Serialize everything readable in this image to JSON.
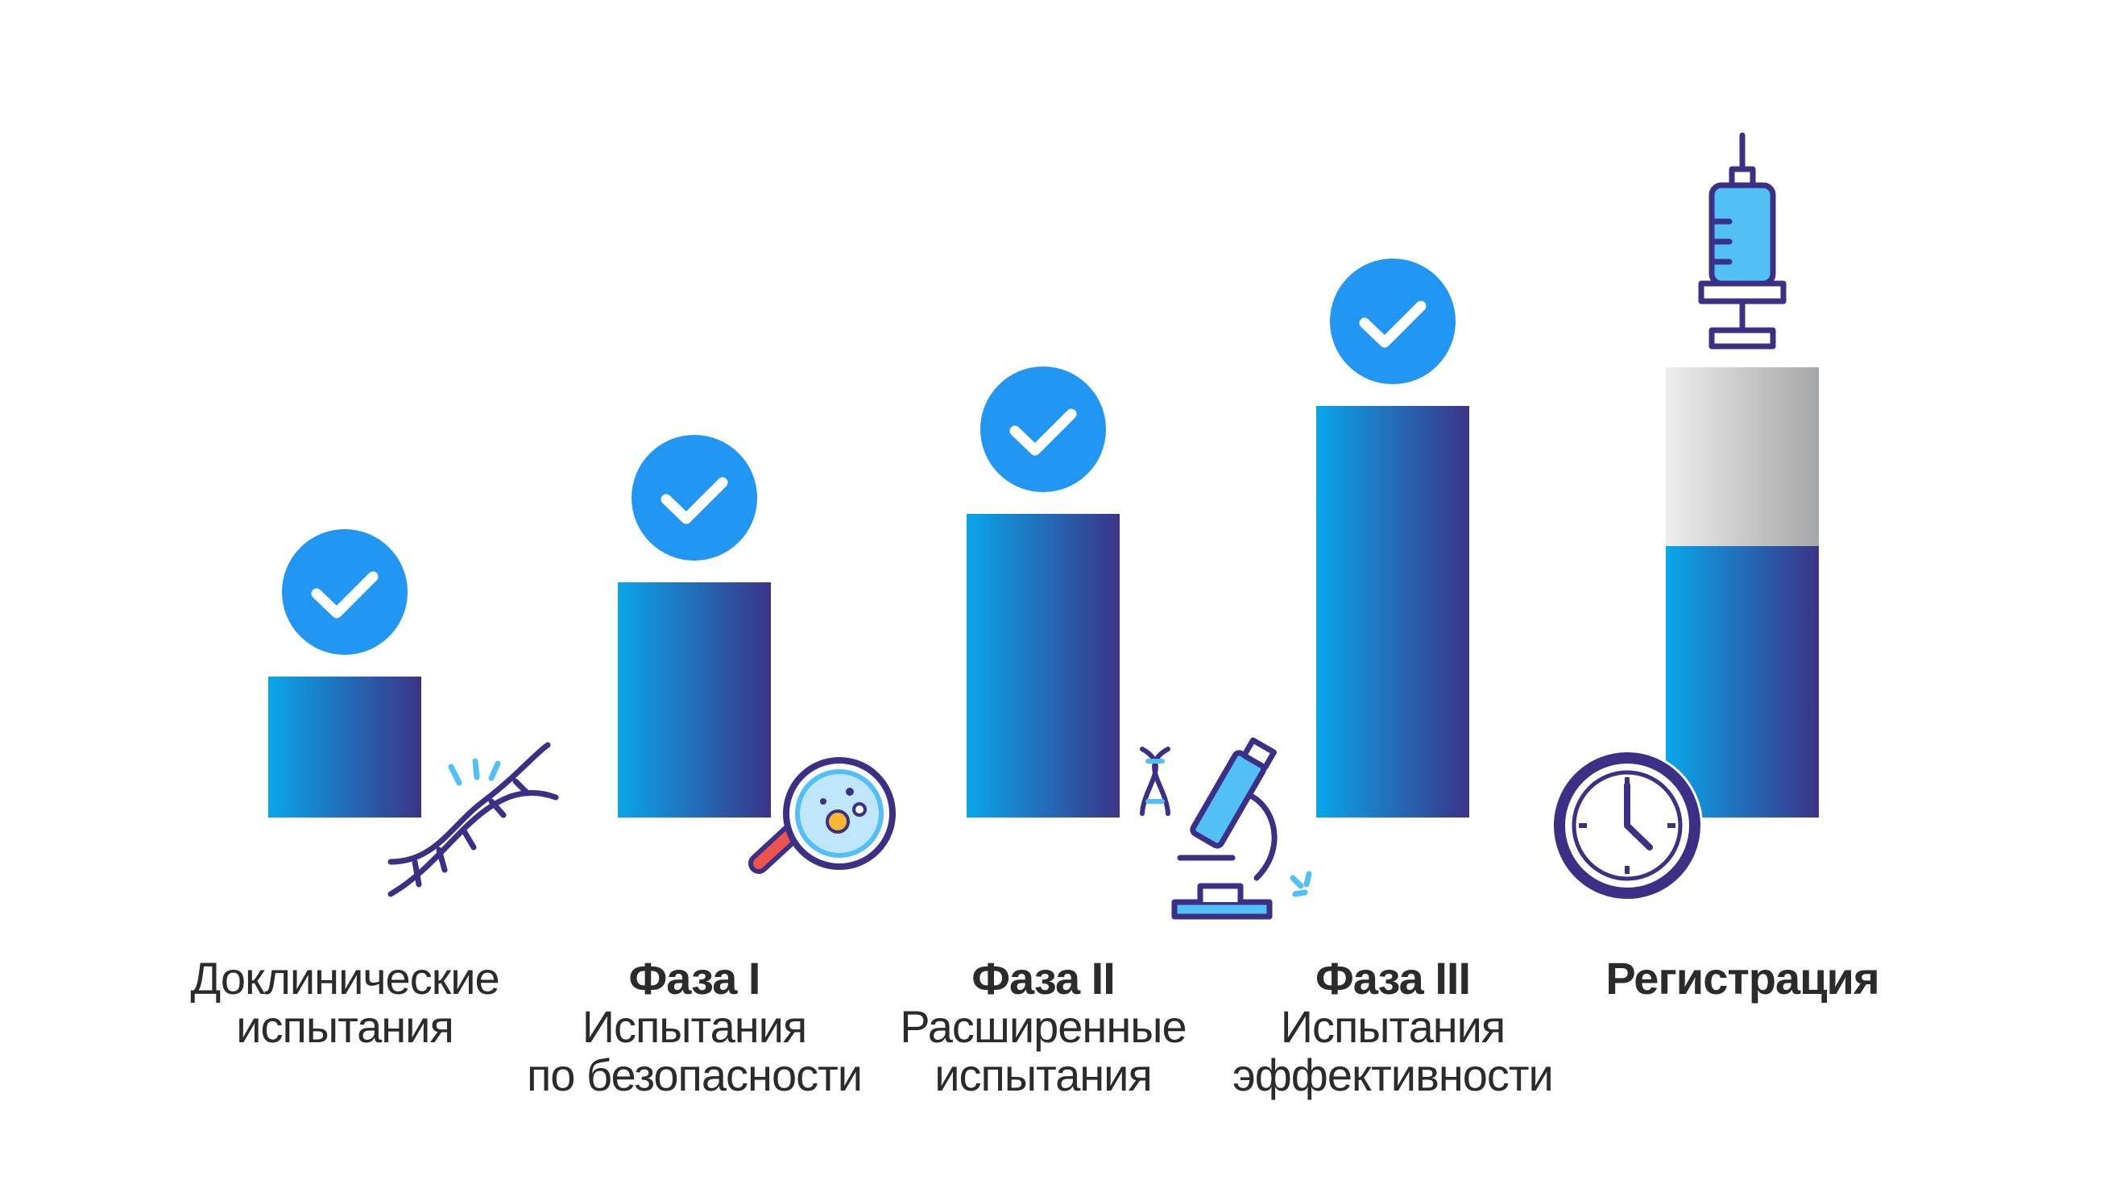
{
  "colors": {
    "bar_start": "#0aa6ea",
    "bar_end": "#3b3487",
    "check": "#2196f3",
    "pending_top": "#e6e6e6",
    "pending_bottom": "#a9aaab",
    "icon_stroke": "#3b2f86",
    "icon_accent": "#52c0f5",
    "icon_red": "#ef5350",
    "icon_yellow": "#f7b733"
  },
  "stages": [
    {
      "title": "",
      "lines": [
        "Доклинические",
        "испытания"
      ],
      "completed": true,
      "icon": "dna-icon"
    },
    {
      "title": "Фаза I",
      "lines": [
        "Испытания",
        "по безопасности"
      ],
      "completed": true,
      "icon": "magnifier-bacteria-icon"
    },
    {
      "title": "Фаза II",
      "lines": [
        "Расширенные",
        "испытания"
      ],
      "completed": true,
      "icon": "microscope-icon"
    },
    {
      "title": "Фаза III",
      "lines": [
        "Испытания",
        "эффективности"
      ],
      "completed": true,
      "icon": "check-icon"
    },
    {
      "title": "Регистрация",
      "lines": [],
      "completed": false,
      "icons": [
        "syringe-icon",
        "clock-icon"
      ]
    }
  ]
}
